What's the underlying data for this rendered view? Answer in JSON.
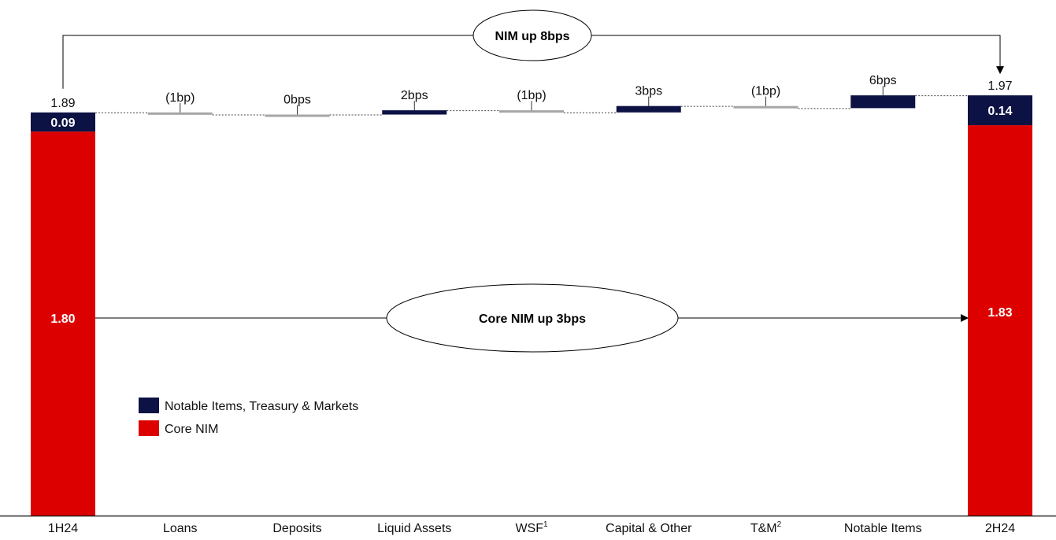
{
  "chart_data": {
    "type": "bar",
    "subtype": "waterfall",
    "categories": [
      {
        "label": "1H24",
        "sup": ""
      },
      {
        "label": "Loans",
        "sup": ""
      },
      {
        "label": "Deposits",
        "sup": ""
      },
      {
        "label": "Liquid Assets",
        "sup": ""
      },
      {
        "label": "WSF",
        "sup": "1"
      },
      {
        "label": "Capital & Other",
        "sup": ""
      },
      {
        "label": "T&M",
        "sup": "2"
      },
      {
        "label": "Notable Items",
        "sup": ""
      },
      {
        "label": "2H24",
        "sup": ""
      }
    ],
    "totals": [
      {
        "category": "1H24",
        "total": 1.89,
        "total_label": "1.89",
        "core": 1.8,
        "core_label": "1.80",
        "notable": 0.09,
        "notable_label": "0.09"
      },
      {
        "category": "2H24",
        "total": 1.97,
        "total_label": "1.97",
        "core": 1.83,
        "core_label": "1.83",
        "notable": 0.14,
        "notable_label": "0.14"
      }
    ],
    "steps": [
      {
        "category": "Loans",
        "delta_bps": -1,
        "label": "(1bp)"
      },
      {
        "category": "Deposits",
        "delta_bps": 0,
        "label": "0bps"
      },
      {
        "category": "Liquid Assets",
        "delta_bps": 2,
        "label": "2bps"
      },
      {
        "category": "WSF",
        "delta_bps": -1,
        "label": "(1bp)"
      },
      {
        "category": "Capital & Other",
        "delta_bps": 3,
        "label": "3bps"
      },
      {
        "category": "T&M",
        "delta_bps": -1,
        "label": "(1bp)"
      },
      {
        "category": "Notable Items",
        "delta_bps": 6,
        "label": "6bps"
      }
    ],
    "series": [
      {
        "name": "Notable Items, Treasury & Markets",
        "color": "#0d1244"
      },
      {
        "name": "Core NIM",
        "color": "#dd0000"
      }
    ],
    "decrease_color": "#a6a6a6",
    "annotations": {
      "top": "NIM up 8bps",
      "middle": "Core NIM up 3bps"
    },
    "ylim": [
      0,
      1.97
    ],
    "legend_position": "lower-left",
    "grid": false
  }
}
